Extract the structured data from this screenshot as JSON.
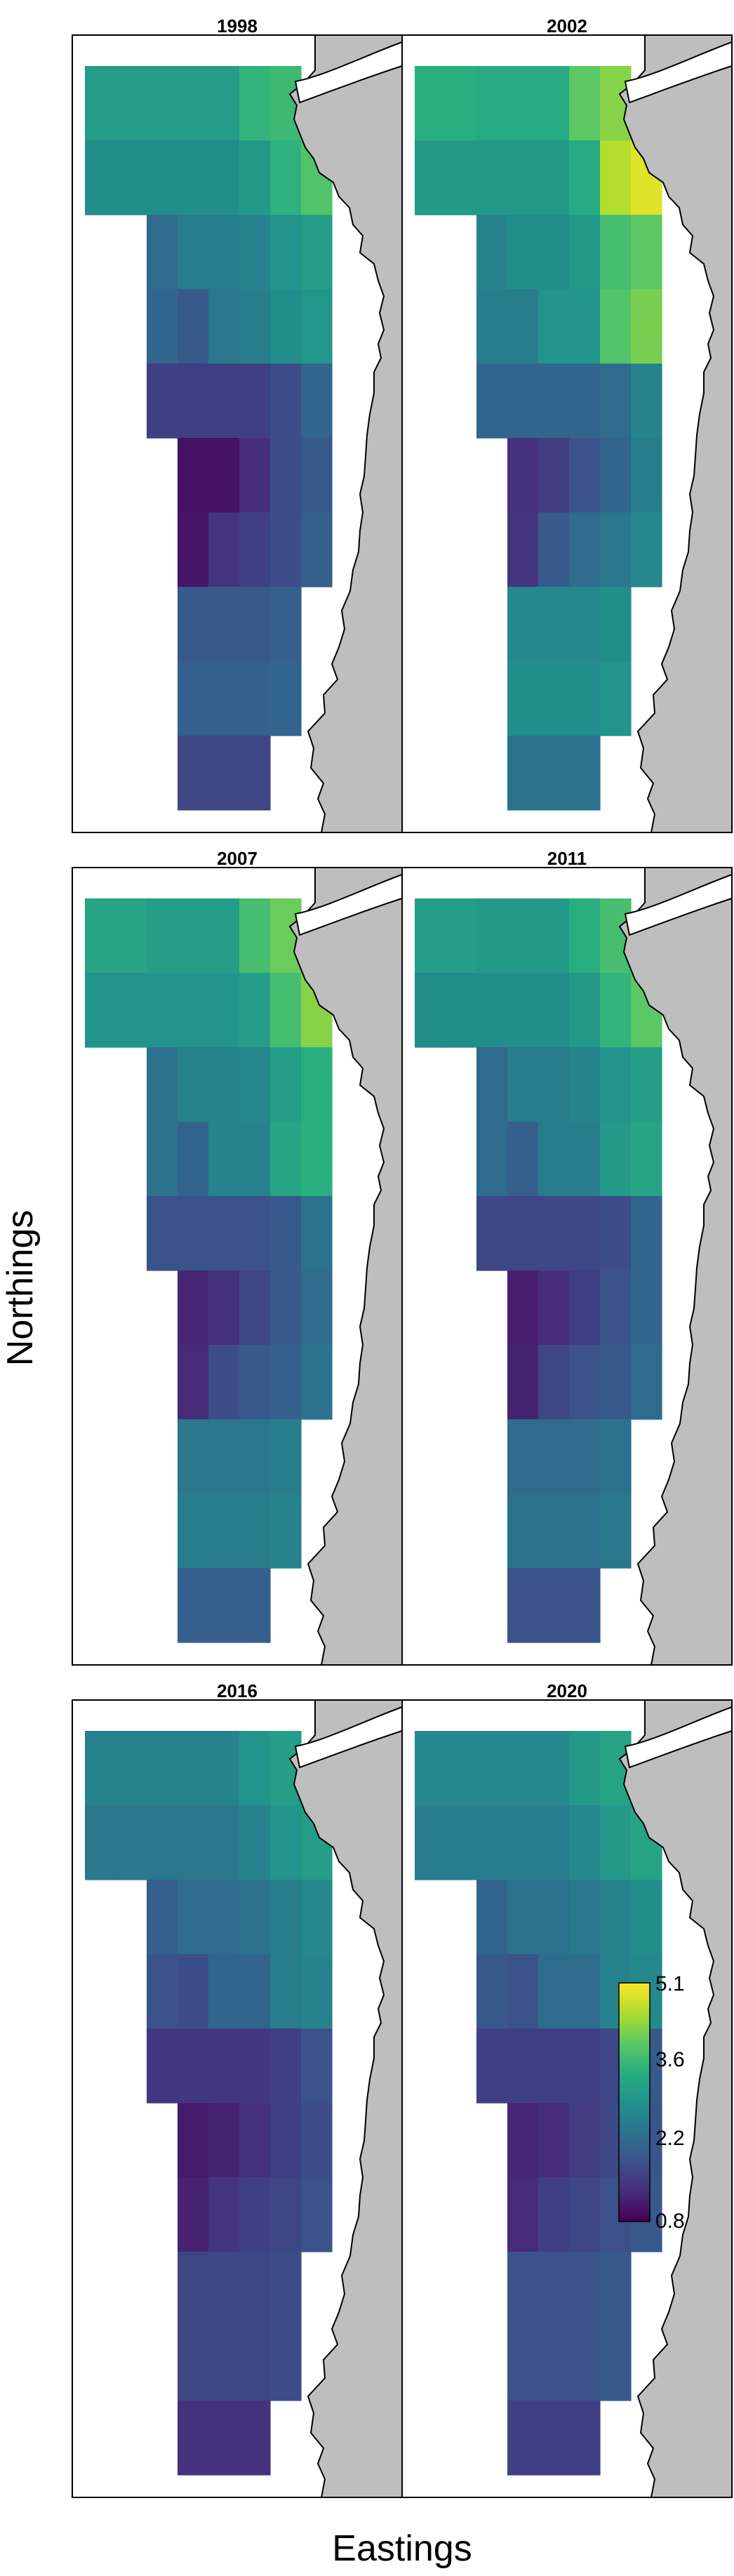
{
  "figure": {
    "xlabel": "Eastings",
    "ylabel": "Northings"
  },
  "colors": {
    "land": "#bebebe",
    "coast_line": "#000000",
    "ocean": "#ffffff",
    "frame": "#000000"
  },
  "legend": {
    "colormap": "viridis",
    "min": 0.8,
    "max": 5.1,
    "ticks": [
      "5.1",
      "3.6",
      "2.2",
      "0.8"
    ]
  },
  "chart_data": {
    "type": "heatmap",
    "colormap": "viridis",
    "value_range": [
      0.8,
      5.1
    ],
    "panels": [
      {
        "title": "1998",
        "grid": [
          [
            3.15,
            3.15,
            3.15,
            3.15,
            3.15,
            3.6,
            3.7,
            null
          ],
          [
            2.9,
            2.9,
            2.9,
            2.9,
            2.9,
            3.1,
            3.55,
            3.9
          ],
          [
            null,
            null,
            2.3,
            2.6,
            2.6,
            2.7,
            3.0,
            3.2
          ],
          [
            null,
            null,
            2.2,
            2.0,
            2.5,
            2.6,
            2.9,
            3.05
          ],
          [
            null,
            null,
            1.6,
            1.6,
            1.6,
            1.6,
            1.8,
            2.2
          ],
          [
            null,
            null,
            null,
            1.0,
            1.0,
            1.35,
            1.8,
            2.0
          ],
          [
            null,
            null,
            null,
            1.05,
            1.45,
            1.6,
            1.8,
            2.1
          ],
          [
            null,
            null,
            null,
            2.0,
            2.0,
            2.0,
            2.1,
            null
          ],
          [
            null,
            null,
            null,
            2.1,
            2.1,
            2.1,
            2.2,
            null
          ],
          [
            null,
            null,
            null,
            1.7,
            1.7,
            1.7,
            null,
            null
          ]
        ]
      },
      {
        "title": "2002",
        "grid": [
          [
            3.5,
            3.5,
            3.4,
            3.4,
            3.4,
            4.0,
            4.3,
            null
          ],
          [
            3.1,
            3.1,
            3.1,
            3.1,
            3.1,
            3.4,
            4.6,
            4.9
          ],
          [
            null,
            null,
            2.7,
            2.9,
            2.9,
            3.1,
            3.8,
            4.0
          ],
          [
            null,
            null,
            2.6,
            2.6,
            3.0,
            3.0,
            3.9,
            4.2
          ],
          [
            null,
            null,
            2.2,
            2.2,
            2.2,
            2.2,
            2.3,
            2.7
          ],
          [
            null,
            null,
            null,
            1.4,
            1.55,
            1.9,
            2.2,
            2.6
          ],
          [
            null,
            null,
            null,
            1.45,
            2.0,
            2.3,
            2.5,
            2.8
          ],
          [
            null,
            null,
            null,
            2.8,
            2.8,
            2.8,
            2.9,
            null
          ],
          [
            null,
            null,
            null,
            2.9,
            2.9,
            2.9,
            3.0,
            null
          ],
          [
            null,
            null,
            null,
            2.4,
            2.4,
            2.4,
            null,
            null
          ]
        ]
      },
      {
        "title": "2007",
        "grid": [
          [
            3.3,
            3.3,
            3.2,
            3.2,
            3.2,
            3.8,
            4.1,
            null
          ],
          [
            3.0,
            3.0,
            3.0,
            3.0,
            3.0,
            3.2,
            3.8,
            4.3
          ],
          [
            null,
            null,
            2.4,
            2.7,
            2.7,
            2.8,
            3.2,
            3.5
          ],
          [
            null,
            null,
            2.4,
            2.2,
            2.7,
            2.7,
            3.3,
            3.5
          ],
          [
            null,
            null,
            1.9,
            1.9,
            1.9,
            1.9,
            2.0,
            2.4
          ],
          [
            null,
            null,
            null,
            1.25,
            1.4,
            1.7,
            2.0,
            2.3
          ],
          [
            null,
            null,
            null,
            1.3,
            1.8,
            2.0,
            2.1,
            2.4
          ],
          [
            null,
            null,
            null,
            2.5,
            2.5,
            2.5,
            2.6,
            null
          ],
          [
            null,
            null,
            null,
            2.6,
            2.6,
            2.6,
            2.7,
            null
          ],
          [
            null,
            null,
            null,
            2.1,
            2.1,
            2.1,
            null,
            null
          ]
        ]
      },
      {
        "title": "2011",
        "grid": [
          [
            3.2,
            3.2,
            3.1,
            3.1,
            3.1,
            3.5,
            3.8,
            null
          ],
          [
            2.9,
            2.9,
            2.9,
            2.9,
            2.9,
            3.1,
            3.6,
            4.0
          ],
          [
            null,
            null,
            2.3,
            2.6,
            2.6,
            2.7,
            3.0,
            3.2
          ],
          [
            null,
            null,
            2.3,
            2.1,
            2.6,
            2.6,
            3.1,
            3.3
          ],
          [
            null,
            null,
            1.7,
            1.7,
            1.7,
            1.7,
            1.8,
            2.2
          ],
          [
            null,
            null,
            null,
            1.15,
            1.35,
            1.6,
            1.9,
            2.2
          ],
          [
            null,
            null,
            null,
            1.2,
            1.7,
            1.9,
            2.0,
            2.3
          ],
          [
            null,
            null,
            null,
            2.3,
            2.3,
            2.3,
            2.4,
            null
          ],
          [
            null,
            null,
            null,
            2.4,
            2.4,
            2.4,
            2.5,
            null
          ],
          [
            null,
            null,
            null,
            1.9,
            1.9,
            1.9,
            null,
            null
          ]
        ]
      },
      {
        "title": "2016",
        "grid": [
          [
            2.7,
            2.7,
            2.7,
            2.7,
            2.7,
            3.0,
            3.2,
            null
          ],
          [
            2.5,
            2.5,
            2.5,
            2.5,
            2.5,
            2.7,
            3.0,
            3.2
          ],
          [
            null,
            null,
            2.1,
            2.3,
            2.3,
            2.4,
            2.6,
            2.8
          ],
          [
            null,
            null,
            1.9,
            1.8,
            2.2,
            2.2,
            2.6,
            2.7
          ],
          [
            null,
            null,
            1.5,
            1.5,
            1.5,
            1.5,
            1.6,
            1.9
          ],
          [
            null,
            null,
            null,
            1.1,
            1.2,
            1.4,
            1.6,
            1.8
          ],
          [
            null,
            null,
            null,
            1.2,
            1.45,
            1.6,
            1.7,
            1.9
          ],
          [
            null,
            null,
            null,
            1.7,
            1.7,
            1.7,
            1.8,
            null
          ],
          [
            null,
            null,
            null,
            1.7,
            1.7,
            1.7,
            1.8,
            null
          ],
          [
            null,
            null,
            null,
            1.4,
            1.4,
            1.4,
            null,
            null
          ]
        ]
      },
      {
        "title": "2020",
        "grid": [
          [
            2.8,
            2.8,
            2.8,
            2.8,
            2.8,
            3.1,
            3.3,
            null
          ],
          [
            2.6,
            2.6,
            2.6,
            2.6,
            2.6,
            2.8,
            3.1,
            3.3
          ],
          [
            null,
            null,
            2.2,
            2.4,
            2.4,
            2.5,
            2.7,
            2.9
          ],
          [
            null,
            null,
            2.0,
            1.9,
            2.3,
            2.3,
            2.7,
            2.8
          ],
          [
            null,
            null,
            1.6,
            1.6,
            1.6,
            1.6,
            1.7,
            2.0
          ],
          [
            null,
            null,
            null,
            1.25,
            1.35,
            1.55,
            1.75,
            1.95
          ],
          [
            null,
            null,
            null,
            1.3,
            1.6,
            1.7,
            1.85,
            2.0
          ],
          [
            null,
            null,
            null,
            1.9,
            1.9,
            1.9,
            2.0,
            null
          ],
          [
            null,
            null,
            null,
            1.9,
            1.9,
            1.9,
            2.0,
            null
          ],
          [
            null,
            null,
            null,
            1.6,
            1.6,
            1.6,
            null,
            null
          ]
        ]
      }
    ]
  }
}
